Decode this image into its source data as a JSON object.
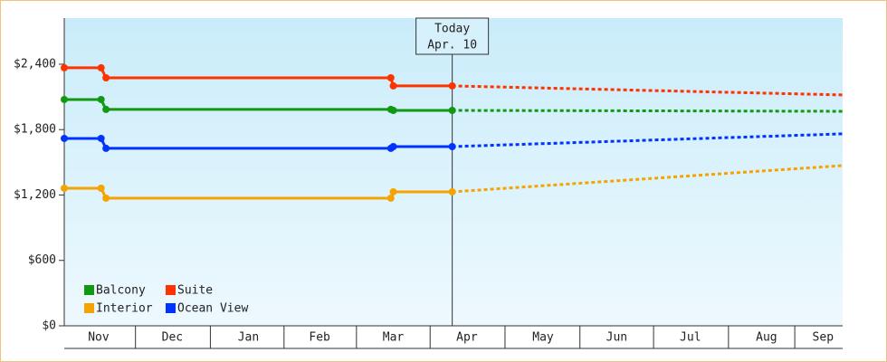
{
  "chart_data": {
    "type": "line",
    "x": [
      0,
      15,
      17,
      133,
      134,
      158
    ],
    "forecast_x": [
      158,
      317
    ],
    "xlim": [
      0,
      317
    ],
    "xticks": [
      {
        "value": 14,
        "label": "Nov"
      },
      {
        "value": 44,
        "label": "Dec"
      },
      {
        "value": 75,
        "label": "Jan"
      },
      {
        "value": 104,
        "label": "Feb"
      },
      {
        "value": 134,
        "label": "Mar"
      },
      {
        "value": 164,
        "label": "Apr"
      },
      {
        "value": 195,
        "label": "May"
      },
      {
        "value": 225,
        "label": "Jun"
      },
      {
        "value": 255,
        "label": "Jul"
      },
      {
        "value": 286,
        "label": "Aug"
      },
      {
        "value": 309,
        "label": "Sep"
      }
    ],
    "ylim": [
      0,
      2823
    ],
    "yticks": [
      {
        "value": 0,
        "label": "$0"
      },
      {
        "value": 600,
        "label": "$600"
      },
      {
        "value": 1200,
        "label": "$1,200"
      },
      {
        "value": 1800,
        "label": "$1,800"
      },
      {
        "value": 2400,
        "label": "$2,400"
      }
    ],
    "annotation": {
      "label": "Today",
      "date": "Apr. 10",
      "x": 158
    },
    "legend": "lower left",
    "series": [
      {
        "name": "Balcony",
        "color": "#119911",
        "values": [
          2076,
          2076,
          1985,
          1985,
          1976,
          1976
        ],
        "forecast": [
          1976,
          1968
        ]
      },
      {
        "name": "Suite",
        "color": "#ff3300",
        "values": [
          2367,
          2367,
          2275,
          2275,
          2201,
          2201
        ],
        "forecast": [
          2201,
          2118
        ]
      },
      {
        "name": "Interior",
        "color": "#f5a300",
        "values": [
          1262,
          1262,
          1171,
          1171,
          1229,
          1229
        ],
        "forecast": [
          1229,
          1470
        ]
      },
      {
        "name": "Ocean View",
        "color": "#0033ff",
        "values": [
          1719,
          1719,
          1628,
          1628,
          1644,
          1644
        ],
        "forecast": [
          1644,
          1761
        ]
      }
    ]
  }
}
